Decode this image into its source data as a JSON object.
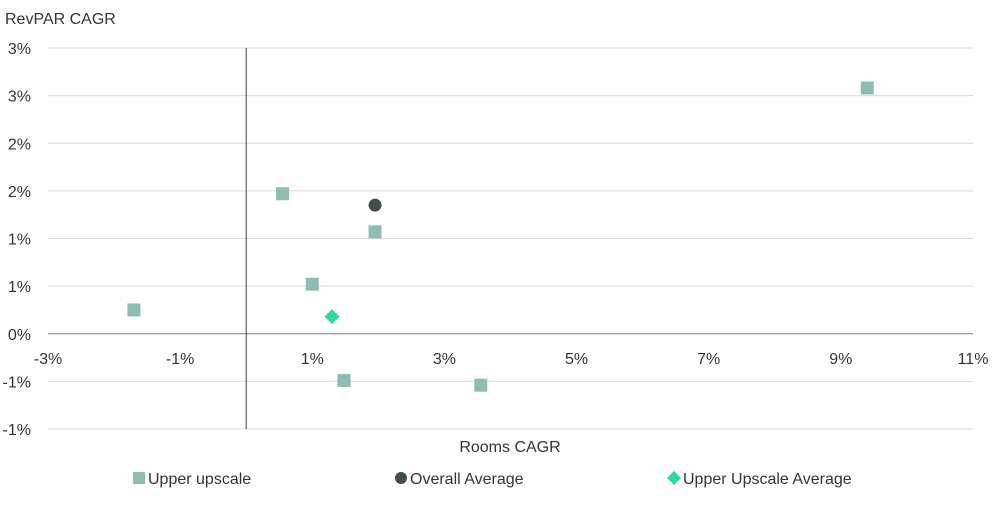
{
  "chart_data": {
    "type": "scatter",
    "title": "",
    "ylabel": "RevPAR CAGR",
    "xlabel": "Rooms CAGR",
    "x_ticks": [
      {
        "value": -3,
        "label": "-3%"
      },
      {
        "value": -1,
        "label": "-1%"
      },
      {
        "value": 1,
        "label": "1%"
      },
      {
        "value": 3,
        "label": "3%"
      },
      {
        "value": 5,
        "label": "5%"
      },
      {
        "value": 7,
        "label": "7%"
      },
      {
        "value": 9,
        "label": "9%"
      },
      {
        "value": 11,
        "label": "11%"
      }
    ],
    "y_ticks": [
      {
        "value": -1.0,
        "label": "-1%"
      },
      {
        "value": -0.5,
        "label": "-1%"
      },
      {
        "value": 0.0,
        "label": "0%"
      },
      {
        "value": 0.5,
        "label": "1%"
      },
      {
        "value": 1.0,
        "label": "1%"
      },
      {
        "value": 1.5,
        "label": "2%"
      },
      {
        "value": 2.0,
        "label": "2%"
      },
      {
        "value": 2.5,
        "label": "3%"
      },
      {
        "value": 3.0,
        "label": "3%"
      }
    ],
    "xlim": [
      -3,
      11
    ],
    "ylim": [
      -1.0,
      3.0
    ],
    "grid": "horizontal",
    "legend_position": "bottom",
    "series": [
      {
        "name": "Upper upscale",
        "marker": "square",
        "color": "#8fbcb0",
        "points": [
          {
            "x": -1.7,
            "y": 0.25
          },
          {
            "x": 0.55,
            "y": 1.47
          },
          {
            "x": 1.0,
            "y": 0.52
          },
          {
            "x": 1.95,
            "y": 1.07
          },
          {
            "x": 1.48,
            "y": -0.49
          },
          {
            "x": 3.55,
            "y": -0.54
          },
          {
            "x": 9.4,
            "y": 2.58
          }
        ]
      },
      {
        "name": "Overall Average",
        "marker": "circle",
        "color": "#444d4d",
        "points": [
          {
            "x": 1.95,
            "y": 1.35
          }
        ]
      },
      {
        "name": "Upper Upscale Average",
        "marker": "diamond",
        "color": "#2ed99a",
        "points": [
          {
            "x": 1.3,
            "y": 0.18
          }
        ]
      }
    ]
  }
}
